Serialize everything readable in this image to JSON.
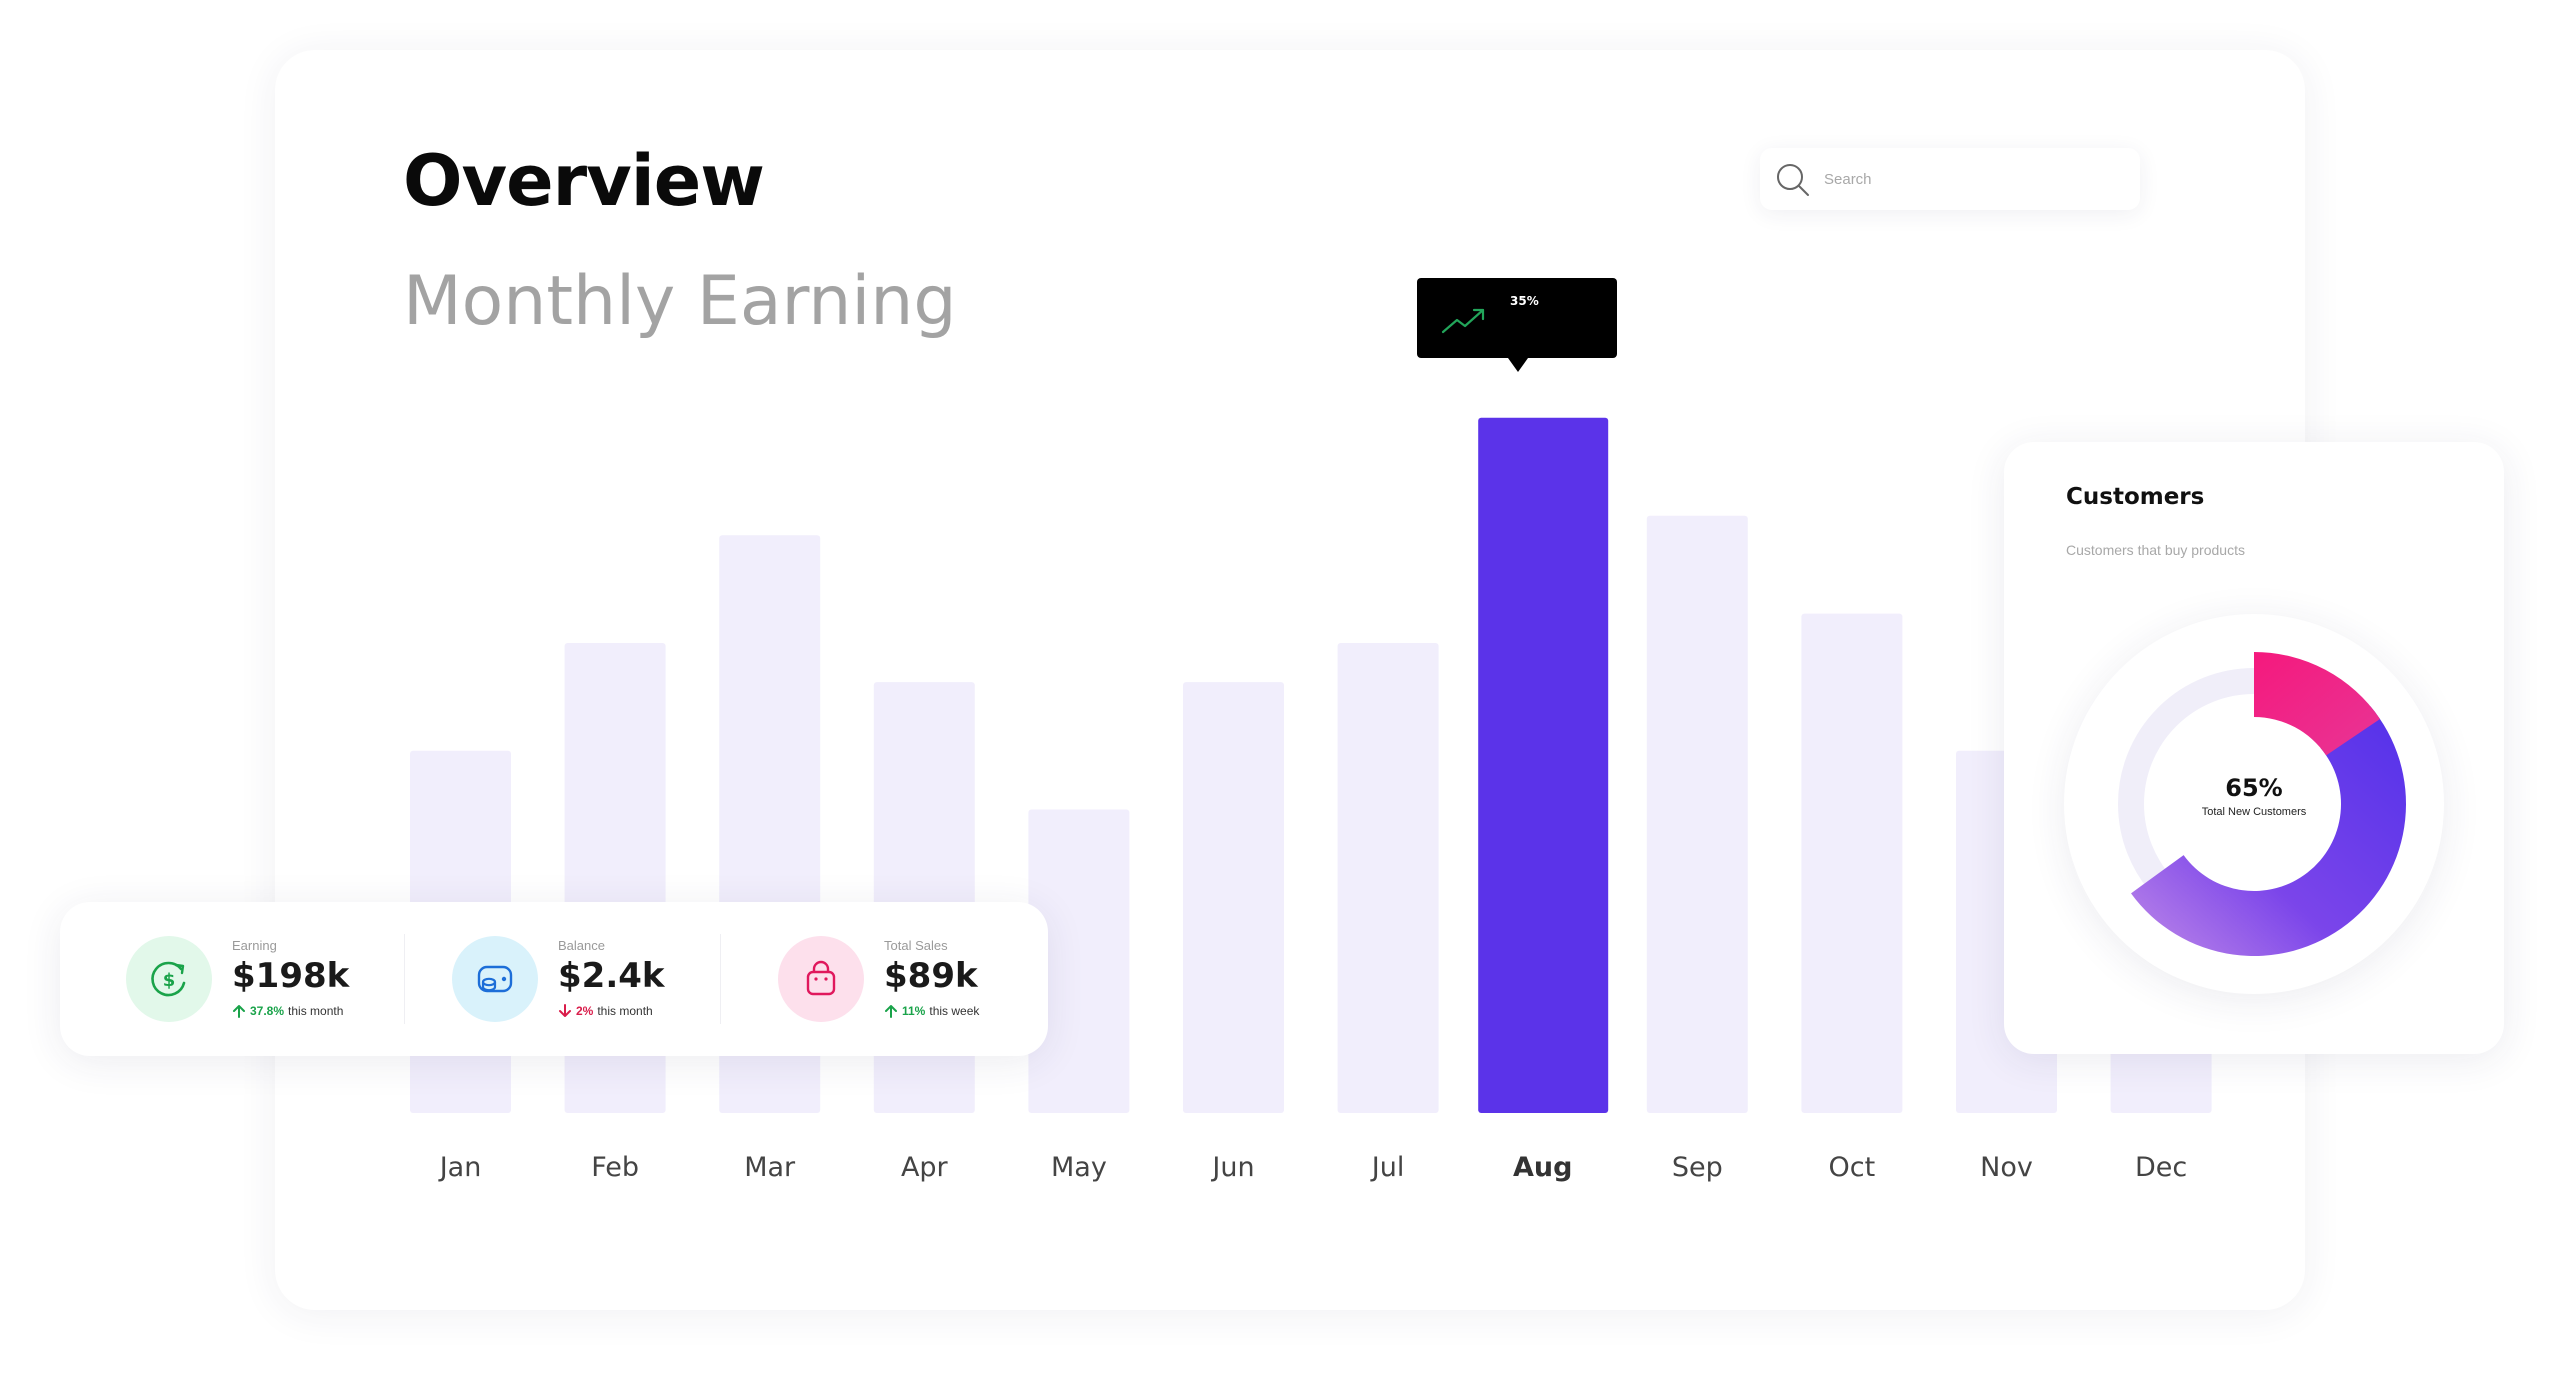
{
  "overview": {
    "title": "Overview",
    "section_title": "Monthly Earning"
  },
  "search": {
    "placeholder": "Search",
    "icon": "search-icon"
  },
  "tooltip": {
    "value": "35%",
    "icon": "trending-up-icon",
    "icon_color": "#22a55a"
  },
  "chart_data": {
    "type": "bar",
    "categories": [
      "Jan",
      "Feb",
      "Mar",
      "Apr",
      "May",
      "Jun",
      "Jul",
      "Aug",
      "Sep",
      "Oct",
      "Nov",
      "Dec"
    ],
    "values": [
      37,
      48,
      59,
      44,
      31,
      44,
      48,
      71,
      61,
      51,
      37,
      37
    ],
    "highlighted": "Aug",
    "ylim": [
      0,
      72
    ],
    "grid": false,
    "colors": {
      "bar": "#f1eefc",
      "highlight": "#5b33e9"
    }
  },
  "stats": [
    {
      "label": "Earning",
      "value": "$198k",
      "change": "37.8%",
      "suffix": "this month",
      "direction": "up",
      "icon": "dollar-refresh-icon",
      "icon_bg": "#e2f8ea",
      "icon_color": "#1aa34a",
      "change_color": "#1aa34a"
    },
    {
      "label": "Balance",
      "value": "$2.4k",
      "change": "2%",
      "suffix": "this month",
      "direction": "down",
      "icon": "wallet-icon",
      "icon_bg": "#d9f2fb",
      "icon_color": "#1d6ed8",
      "change_color": "#d91c4a"
    },
    {
      "label": "Total Sales",
      "value": "$89k",
      "change": "11%",
      "suffix": "this week",
      "direction": "up",
      "icon": "shopping-bag-icon",
      "icon_bg": "#fde0ec",
      "icon_color": "#e0185d",
      "change_color": "#1aa34a"
    }
  ],
  "customers": {
    "title": "Customers",
    "subtitle": "Customers that buy products",
    "percent": "65%",
    "caption": "Total New Customers",
    "value": 65,
    "colors": {
      "pink": "#ee1d7d",
      "purple": "#5a35ea",
      "light_purple": "#b07be8",
      "track": "#f0eef9"
    }
  }
}
